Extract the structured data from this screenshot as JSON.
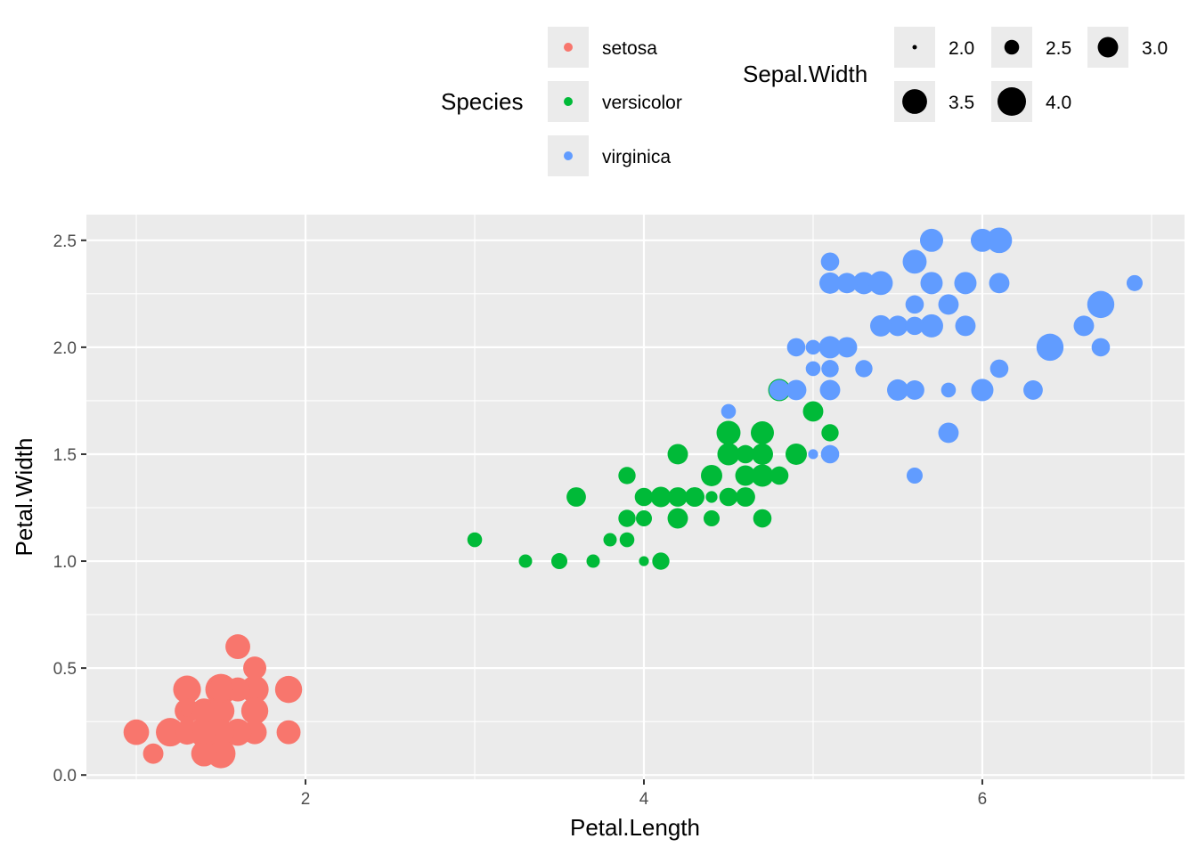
{
  "chart_data": {
    "type": "scatter",
    "xlabel": "Petal.Length",
    "ylabel": "Petal.Width",
    "xlim": [
      0.705,
      7.195
    ],
    "ylim": [
      -0.02,
      2.62
    ],
    "x_ticks": [
      2,
      4,
      6
    ],
    "x_tick_labels": [
      "2",
      "4",
      "6"
    ],
    "y_ticks": [
      0.0,
      0.5,
      1.0,
      1.5,
      2.0,
      2.5
    ],
    "y_tick_labels": [
      "0.0",
      "0.5",
      "1.0",
      "1.5",
      "2.0",
      "2.5"
    ],
    "grid": true,
    "legend_position": "top",
    "color_legend": {
      "title": "Species",
      "entries": [
        {
          "label": "setosa",
          "color": "#F8766D"
        },
        {
          "label": "versicolor",
          "color": "#00BA38"
        },
        {
          "label": "virginica",
          "color": "#619CFF"
        }
      ]
    },
    "size_legend": {
      "title": "Sepal.Width",
      "entries": [
        {
          "label": "2.0",
          "value": 2.0
        },
        {
          "label": "2.5",
          "value": 2.5
        },
        {
          "label": "3.0",
          "value": 3.0
        },
        {
          "label": "3.5",
          "value": 3.5
        },
        {
          "label": "4.0",
          "value": 4.0
        }
      ]
    },
    "size_range_data": [
      2.0,
      4.4
    ],
    "series": [
      {
        "name": "setosa",
        "color": "#F8766D",
        "points": [
          [
            1.4,
            0.2,
            3.5
          ],
          [
            1.4,
            0.2,
            3.0
          ],
          [
            1.3,
            0.2,
            3.2
          ],
          [
            1.5,
            0.2,
            3.1
          ],
          [
            1.4,
            0.2,
            3.6
          ],
          [
            1.7,
            0.4,
            3.9
          ],
          [
            1.4,
            0.3,
            3.4
          ],
          [
            1.5,
            0.2,
            3.4
          ],
          [
            1.4,
            0.2,
            2.9
          ],
          [
            1.5,
            0.1,
            3.1
          ],
          [
            1.5,
            0.2,
            3.7
          ],
          [
            1.6,
            0.2,
            3.4
          ],
          [
            1.4,
            0.1,
            3.0
          ],
          [
            1.1,
            0.1,
            3.0
          ],
          [
            1.2,
            0.2,
            4.0
          ],
          [
            1.5,
            0.4,
            4.4
          ],
          [
            1.3,
            0.4,
            3.9
          ],
          [
            1.4,
            0.3,
            3.5
          ],
          [
            1.7,
            0.3,
            3.8
          ],
          [
            1.5,
            0.3,
            3.8
          ],
          [
            1.7,
            0.2,
            3.4
          ],
          [
            1.5,
            0.4,
            3.7
          ],
          [
            1.0,
            0.2,
            3.6
          ],
          [
            1.7,
            0.5,
            3.3
          ],
          [
            1.9,
            0.2,
            3.4
          ],
          [
            1.6,
            0.2,
            3.0
          ],
          [
            1.6,
            0.4,
            3.4
          ],
          [
            1.5,
            0.2,
            3.5
          ],
          [
            1.4,
            0.2,
            3.4
          ],
          [
            1.6,
            0.2,
            3.2
          ],
          [
            1.6,
            0.2,
            3.1
          ],
          [
            1.5,
            0.4,
            3.4
          ],
          [
            1.5,
            0.1,
            4.1
          ],
          [
            1.4,
            0.2,
            4.2
          ],
          [
            1.5,
            0.2,
            3.1
          ],
          [
            1.2,
            0.2,
            3.2
          ],
          [
            1.3,
            0.2,
            3.5
          ],
          [
            1.4,
            0.1,
            3.6
          ],
          [
            1.3,
            0.2,
            3.0
          ],
          [
            1.5,
            0.2,
            3.4
          ],
          [
            1.3,
            0.3,
            3.5
          ],
          [
            1.3,
            0.3,
            2.3
          ],
          [
            1.3,
            0.2,
            3.2
          ],
          [
            1.6,
            0.6,
            3.5
          ],
          [
            1.9,
            0.4,
            3.8
          ],
          [
            1.4,
            0.3,
            3.0
          ],
          [
            1.6,
            0.2,
            3.8
          ],
          [
            1.4,
            0.2,
            3.2
          ],
          [
            1.5,
            0.2,
            3.7
          ],
          [
            1.4,
            0.2,
            3.3
          ]
        ]
      },
      {
        "name": "versicolor",
        "color": "#00BA38",
        "points": [
          [
            4.7,
            1.4,
            3.2
          ],
          [
            4.5,
            1.5,
            3.2
          ],
          [
            4.9,
            1.5,
            3.1
          ],
          [
            4.0,
            1.3,
            2.3
          ],
          [
            4.6,
            1.5,
            2.8
          ],
          [
            4.5,
            1.3,
            2.8
          ],
          [
            4.7,
            1.6,
            3.3
          ],
          [
            3.3,
            1.0,
            2.4
          ],
          [
            4.6,
            1.3,
            2.9
          ],
          [
            3.9,
            1.4,
            2.7
          ],
          [
            3.5,
            1.0,
            2.0
          ],
          [
            4.2,
            1.5,
            3.0
          ],
          [
            4.0,
            1.0,
            2.2
          ],
          [
            4.7,
            1.4,
            2.9
          ],
          [
            3.6,
            1.3,
            2.9
          ],
          [
            4.4,
            1.4,
            3.1
          ],
          [
            4.5,
            1.5,
            3.0
          ],
          [
            4.1,
            1.0,
            2.7
          ],
          [
            4.5,
            1.5,
            2.2
          ],
          [
            3.9,
            1.1,
            2.5
          ],
          [
            4.8,
            1.8,
            3.2
          ],
          [
            4.0,
            1.3,
            2.8
          ],
          [
            4.9,
            1.5,
            2.5
          ],
          [
            4.7,
            1.2,
            2.8
          ],
          [
            4.3,
            1.3,
            2.9
          ],
          [
            4.4,
            1.4,
            3.0
          ],
          [
            4.8,
            1.4,
            2.8
          ],
          [
            5.0,
            1.7,
            3.0
          ],
          [
            4.5,
            1.5,
            2.9
          ],
          [
            3.5,
            1.0,
            2.6
          ],
          [
            3.8,
            1.1,
            2.4
          ],
          [
            3.7,
            1.0,
            2.4
          ],
          [
            3.9,
            1.2,
            2.7
          ],
          [
            5.1,
            1.6,
            2.7
          ],
          [
            4.5,
            1.5,
            3.0
          ],
          [
            4.5,
            1.6,
            3.4
          ],
          [
            4.7,
            1.5,
            3.1
          ],
          [
            4.4,
            1.3,
            2.3
          ],
          [
            4.1,
            1.3,
            3.0
          ],
          [
            4.0,
            1.3,
            2.5
          ],
          [
            4.4,
            1.2,
            2.6
          ],
          [
            4.6,
            1.4,
            3.0
          ],
          [
            4.0,
            1.2,
            2.6
          ],
          [
            3.3,
            1.0,
            2.3
          ],
          [
            4.2,
            1.3,
            2.7
          ],
          [
            4.2,
            1.2,
            3.0
          ],
          [
            4.2,
            1.3,
            2.9
          ],
          [
            4.3,
            1.3,
            2.9
          ],
          [
            3.0,
            1.1,
            2.5
          ],
          [
            4.1,
            1.3,
            2.8
          ]
        ]
      },
      {
        "name": "virginica",
        "color": "#619CFF",
        "points": [
          [
            6.0,
            2.5,
            3.3
          ],
          [
            5.1,
            1.9,
            2.7
          ],
          [
            5.9,
            2.1,
            3.0
          ],
          [
            5.6,
            1.8,
            2.9
          ],
          [
            5.8,
            2.2,
            3.0
          ],
          [
            6.6,
            2.1,
            3.0
          ],
          [
            4.5,
            1.7,
            2.5
          ],
          [
            6.3,
            1.8,
            2.9
          ],
          [
            5.8,
            1.8,
            2.5
          ],
          [
            6.1,
            2.5,
            3.6
          ],
          [
            5.1,
            2.0,
            3.2
          ],
          [
            5.3,
            1.9,
            2.7
          ],
          [
            5.5,
            2.1,
            3.0
          ],
          [
            5.0,
            2.0,
            2.5
          ],
          [
            5.1,
            2.4,
            2.8
          ],
          [
            5.3,
            2.3,
            3.2
          ],
          [
            5.5,
            1.8,
            3.0
          ],
          [
            6.7,
            2.2,
            3.8
          ],
          [
            6.9,
            2.3,
            2.6
          ],
          [
            5.0,
            1.5,
            2.2
          ],
          [
            5.7,
            2.3,
            3.2
          ],
          [
            4.9,
            2.0,
            2.8
          ],
          [
            6.7,
            2.0,
            2.8
          ],
          [
            4.9,
            1.8,
            2.7
          ],
          [
            5.7,
            2.1,
            3.3
          ],
          [
            6.0,
            1.8,
            3.2
          ],
          [
            4.8,
            1.8,
            2.8
          ],
          [
            4.9,
            1.8,
            3.0
          ],
          [
            5.6,
            2.1,
            2.8
          ],
          [
            5.8,
            1.6,
            3.0
          ],
          [
            6.1,
            1.9,
            2.8
          ],
          [
            6.4,
            2.0,
            3.8
          ],
          [
            5.6,
            2.2,
            2.8
          ],
          [
            5.1,
            1.5,
            2.8
          ],
          [
            5.6,
            1.4,
            2.6
          ],
          [
            6.1,
            2.3,
            3.0
          ],
          [
            5.6,
            2.4,
            3.4
          ],
          [
            5.5,
            1.8,
            3.1
          ],
          [
            4.8,
            1.8,
            3.0
          ],
          [
            5.4,
            2.1,
            3.1
          ],
          [
            5.6,
            2.4,
            3.1
          ],
          [
            5.1,
            2.3,
            3.1
          ],
          [
            5.1,
            1.9,
            2.7
          ],
          [
            5.9,
            2.3,
            3.2
          ],
          [
            5.7,
            2.5,
            3.3
          ],
          [
            5.2,
            2.3,
            3.0
          ],
          [
            5.0,
            1.9,
            2.5
          ],
          [
            5.2,
            2.0,
            3.0
          ],
          [
            5.4,
            2.3,
            3.4
          ],
          [
            5.1,
            1.8,
            3.0
          ]
        ]
      }
    ]
  }
}
